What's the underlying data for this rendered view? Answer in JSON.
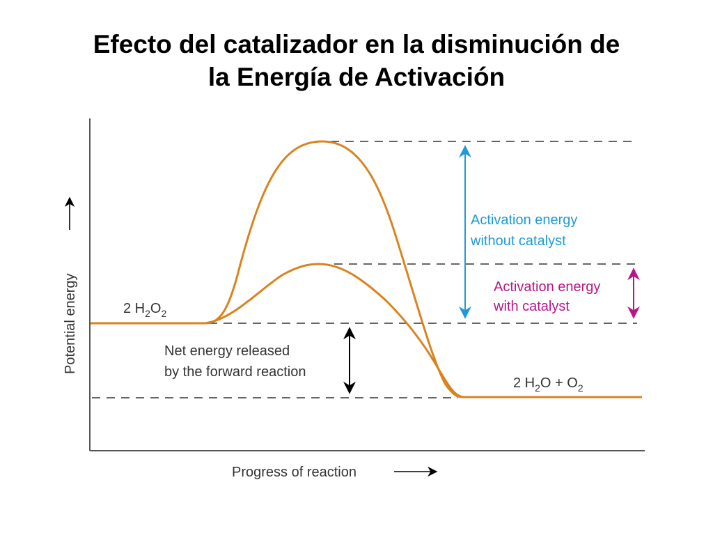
{
  "title": {
    "line1": "Efecto del catalizador en la disminución de",
    "line2": "la Energía de Activación"
  },
  "axes": {
    "y_label": "Potential energy",
    "x_label": "Progress of reaction"
  },
  "species": {
    "reactant": {
      "coef": "2 H",
      "sub1": "2",
      "mid": "O",
      "sub2": "2"
    },
    "product": {
      "coef": "2 H",
      "sub1": "2",
      "mid": "O + O",
      "sub2": "2"
    }
  },
  "annotations": {
    "without_catalyst": {
      "line1": "Activation energy",
      "line2": "without catalyst"
    },
    "with_catalyst": {
      "line1": "Activation energy",
      "line2": "with catalyst"
    },
    "net_energy": {
      "line1": "Net energy released",
      "line2": "by the forward reaction"
    }
  },
  "colors": {
    "curve": "#d9831f",
    "without_catalyst": "#1f9ad6",
    "with_catalyst": "#b5178a",
    "axis": "#555555",
    "dashes": "#333333"
  }
}
